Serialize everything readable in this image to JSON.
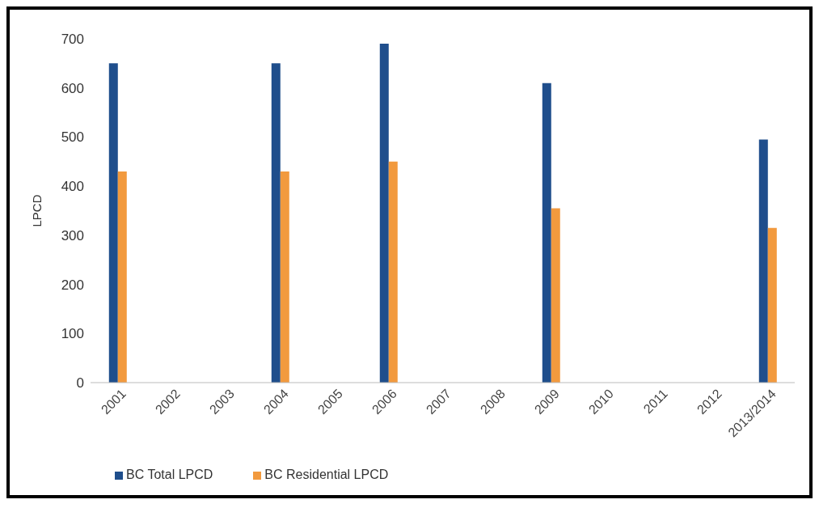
{
  "chart_data": {
    "type": "bar",
    "ylabel": "LPCD",
    "categories": [
      "2001",
      "2002",
      "2003",
      "2004",
      "2005",
      "2006",
      "2007",
      "2008",
      "2009",
      "2010",
      "2011",
      "2012",
      "2013/2014"
    ],
    "series": [
      {
        "name": "BC Total LPCD",
        "color": "#1f4e8c",
        "values": [
          650,
          null,
          null,
          650,
          null,
          690,
          null,
          null,
          610,
          null,
          null,
          null,
          495
        ]
      },
      {
        "name": "BC Residential LPCD",
        "color": "#f29a3e",
        "values": [
          430,
          null,
          null,
          430,
          null,
          450,
          null,
          null,
          355,
          null,
          null,
          null,
          315
        ]
      }
    ],
    "ylim": [
      0,
      700
    ],
    "yticks": [
      0,
      100,
      200,
      300,
      400,
      500,
      600,
      700
    ],
    "grid": false,
    "legend": "bottom left"
  }
}
